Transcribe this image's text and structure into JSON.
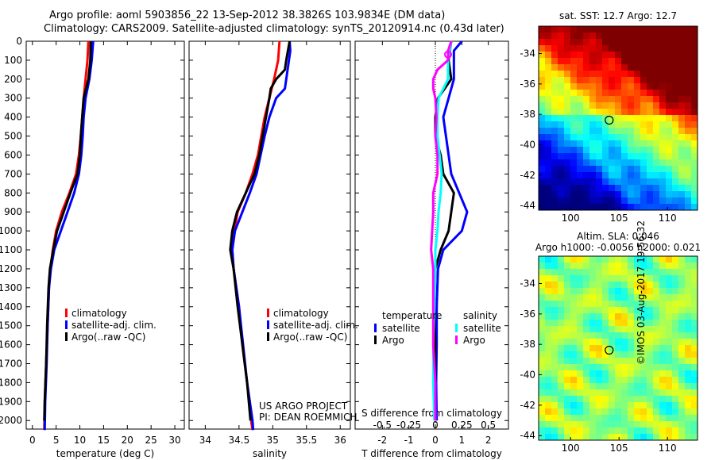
{
  "title_line1": "Argo profile: aoml 5903856_22 13-Sep-2012 38.3826S 103.9834E (DM data)",
  "title_line2": "Climatology: CARS2009. Satellite-adjusted climatology: synTS_20120914.nc (0.43d later)",
  "project_line1": "US ARGO PROJECT",
  "project_line2": "PI: DEAN ROEMMICH",
  "copyright": "©IMOS 03-Aug-2017 19:56:32",
  "colors": {
    "climatology": "#ff0000",
    "satellite": "#0000ff",
    "argo": "#000000",
    "sal_satellite": "#00ffff",
    "sal_argo": "#ff00ff"
  },
  "chart_data": [
    {
      "type": "line",
      "xlabel": "temperature (deg C)",
      "ylabel": "depth",
      "xlim": [
        -1.3,
        32
      ],
      "ylim": [
        2045,
        0
      ],
      "xticks": [
        0,
        5,
        10,
        15,
        20,
        25,
        30
      ],
      "yticks": [
        0,
        100,
        200,
        300,
        400,
        500,
        600,
        700,
        800,
        900,
        1000,
        1100,
        1200,
        1300,
        1400,
        1500,
        1600,
        1700,
        1800,
        1900,
        2000
      ],
      "legend": [
        "climatology",
        "satellite-adj. clim.",
        "Argo(..raw -QC)"
      ],
      "series": [
        {
          "name": "climatology",
          "color": "#ff0000",
          "depth": [
            0,
            100,
            200,
            300,
            400,
            500,
            600,
            700,
            800,
            900,
            1000,
            1100,
            1200,
            1300,
            1500,
            1700,
            1900,
            2050
          ],
          "values": [
            11.8,
            11.6,
            11.2,
            10.8,
            10.5,
            10.2,
            9.8,
            9.2,
            7.8,
            6.2,
            5.0,
            4.3,
            3.8,
            3.5,
            3.2,
            2.9,
            2.6,
            2.5
          ]
        },
        {
          "name": "satellite-adj. clim.",
          "color": "#0000ff",
          "depth": [
            0,
            100,
            200,
            300,
            400,
            500,
            600,
            700,
            800,
            900,
            1000,
            1100,
            1200,
            1300,
            1500,
            1700,
            1900,
            2050
          ],
          "values": [
            12.8,
            12.5,
            12.0,
            11.2,
            10.8,
            10.6,
            10.3,
            9.8,
            8.8,
            7.4,
            6.0,
            4.6,
            3.9,
            3.5,
            3.2,
            3.0,
            2.7,
            2.6
          ]
        },
        {
          "name": "Argo(..raw -QC)",
          "color": "#000000",
          "depth": [
            0,
            100,
            200,
            300,
            400,
            500,
            600,
            700,
            800,
            900,
            1000,
            1100,
            1200,
            1300,
            1500,
            1700,
            1900,
            2000
          ],
          "values": [
            12.3,
            12.2,
            11.8,
            10.8,
            10.5,
            10.2,
            10.0,
            9.5,
            8.0,
            6.6,
            5.2,
            4.4,
            3.7,
            3.4,
            3.1,
            2.9,
            2.6,
            2.5
          ]
        }
      ]
    },
    {
      "type": "line",
      "xlabel": "salinity",
      "ylabel": "depth",
      "xlim": [
        33.76,
        36.15
      ],
      "ylim": [
        2045,
        0
      ],
      "xticks": [
        34,
        34.5,
        35,
        35.5,
        36
      ],
      "legend": [
        "climatology",
        "satellite-adj. clim.",
        "Argo(..raw -QC)"
      ],
      "series": [
        {
          "name": "climatology",
          "color": "#ff0000",
          "depth": [
            0,
            100,
            200,
            300,
            400,
            500,
            600,
            700,
            800,
            900,
            1000,
            1100,
            1200,
            1400,
            1600,
            1800,
            2000,
            2050
          ],
          "values": [
            35.1,
            35.08,
            35.02,
            34.95,
            34.88,
            34.83,
            34.78,
            34.7,
            34.6,
            34.48,
            34.43,
            34.4,
            34.42,
            34.5,
            34.55,
            34.62,
            34.68,
            34.7
          ]
        },
        {
          "name": "satellite-adj. clim.",
          "color": "#0000ff",
          "depth": [
            0,
            50,
            100,
            200,
            250,
            300,
            400,
            500,
            600,
            700,
            800,
            900,
            1000,
            1100,
            1200,
            1400,
            1600,
            1800,
            2000,
            2050
          ],
          "values": [
            35.25,
            35.26,
            35.24,
            35.2,
            35.18,
            35.05,
            34.95,
            34.88,
            34.82,
            34.76,
            34.66,
            34.55,
            34.44,
            34.4,
            34.42,
            34.5,
            34.56,
            34.62,
            34.7,
            34.71
          ]
        },
        {
          "name": "Argo(..raw -QC)",
          "color": "#000000",
          "depth": [
            0,
            100,
            150,
            200,
            250,
            300,
            400,
            500,
            600,
            700,
            800,
            900,
            1000,
            1100,
            1200,
            1400,
            1600,
            1800,
            2000
          ],
          "values": [
            35.25,
            35.2,
            35.18,
            35.05,
            34.97,
            34.95,
            34.9,
            34.85,
            34.8,
            34.73,
            34.6,
            34.47,
            34.4,
            34.37,
            34.42,
            34.48,
            34.55,
            34.62,
            34.67
          ]
        }
      ]
    },
    {
      "type": "line",
      "xlabel": "T difference from climatology",
      "x2label": "S difference from climatology",
      "xlim": [
        -3.03,
        2.76
      ],
      "ylim": [
        2045,
        0
      ],
      "xticks": [
        -2,
        -1,
        0,
        1,
        2
      ],
      "x2ticks": [
        -0.5,
        -0.25,
        0,
        0.25,
        0.5
      ],
      "x2_scale": 4,
      "legend_temperature": {
        "heading": "temperature",
        "items": [
          "satellite",
          "Argo"
        ]
      },
      "legend_salinity": {
        "heading": "salinity",
        "items": [
          "satellite",
          "Argo"
        ]
      },
      "series": [
        {
          "name": "temperature satellite",
          "color": "#0000ff",
          "units": "T",
          "depth": [
            0,
            50,
            100,
            200,
            300,
            400,
            500,
            600,
            700,
            800,
            900,
            1000,
            1100,
            1200,
            1400,
            1600,
            1800,
            2000
          ],
          "values": [
            1.0,
            0.7,
            0.7,
            0.7,
            0.5,
            0.3,
            0.4,
            0.5,
            0.6,
            0.9,
            1.2,
            1.0,
            0.3,
            0.1,
            0.05,
            0.05,
            0.03,
            0.05
          ]
        },
        {
          "name": "temperature Argo",
          "color": "#000000",
          "units": "T",
          "depth": [
            0,
            100,
            200,
            300,
            400,
            500,
            600,
            700,
            800,
            900,
            1000,
            1100,
            1200,
            1400,
            1600,
            1800,
            2000
          ],
          "values": [
            0.6,
            0.5,
            0.6,
            0.1,
            0,
            0,
            0.2,
            0.3,
            0.7,
            0.6,
            0.5,
            0.2,
            0,
            -0.05,
            0,
            0,
            0
          ]
        },
        {
          "name": "salinity satellite",
          "color": "#00ffff",
          "units": "S",
          "depth": [
            0,
            100,
            200,
            300,
            400,
            500,
            600,
            700,
            800,
            900,
            1000,
            1100,
            1200,
            1400,
            1600,
            1800,
            2000
          ],
          "values": [
            0.15,
            0.12,
            0.12,
            0.03,
            0.02,
            0.02,
            0.04,
            0.06,
            0.05,
            0.03,
            0.02,
            0,
            0,
            -0.01,
            -0.02,
            -0.02,
            -0.01
          ]
        },
        {
          "name": "salinity Argo",
          "color": "#ff00ff",
          "units": "S",
          "depth": [
            0,
            50,
            100,
            150,
            200,
            250,
            300,
            400,
            500,
            600,
            700,
            800,
            900,
            1000,
            1100,
            1200,
            1400,
            1600,
            1800,
            2000
          ],
          "values": [
            0.15,
            0.12,
            0.12,
            0.02,
            -0.02,
            -0.02,
            0,
            0.01,
            0,
            0.02,
            0.02,
            -0.02,
            -0.02,
            -0.03,
            -0.04,
            -0.02,
            -0.02,
            -0.02,
            0,
            0
          ]
        }
      ]
    },
    {
      "type": "heatmap",
      "title": "sat. SST: 12.7 Argo: 12.7",
      "xlim": [
        96.7,
        113.1
      ],
      "ylim": [
        -44.3,
        -32.2
      ],
      "xticks": [
        100,
        105,
        110
      ],
      "yticks": [
        -34,
        -36,
        -38,
        -40,
        -42,
        -44
      ],
      "marker": {
        "lon": 103.98,
        "lat": -38.38
      }
    },
    {
      "type": "heatmap",
      "title": "Altim. SLA: 0.046",
      "subtitle": "Argo h1000: -0.0056 h2000: 0.021",
      "xlim": [
        96.7,
        113.1
      ],
      "ylim": [
        -44.3,
        -32.2
      ],
      "xticks": [
        100,
        105,
        110
      ],
      "yticks": [
        -34,
        -36,
        -38,
        -40,
        -42,
        -44
      ],
      "marker": {
        "lon": 103.98,
        "lat": -38.38
      }
    }
  ]
}
